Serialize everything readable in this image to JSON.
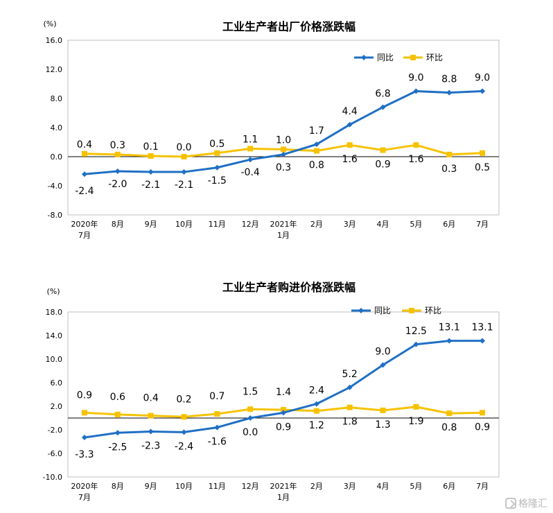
{
  "chart_data": [
    {
      "type": "line",
      "title": "工业生产者出厂价格涨跌幅",
      "ylabel": "(%)",
      "ylim": [
        -8.0,
        16.0
      ],
      "yticks": [
        "16.0",
        "12.0",
        "8.0",
        "4.0",
        "0.0",
        "-4.0",
        "-8.0"
      ],
      "categories": [
        [
          "2020年",
          "7月"
        ],
        [
          "8月"
        ],
        [
          "9月"
        ],
        [
          "10月"
        ],
        [
          "11月"
        ],
        [
          "12月"
        ],
        [
          "2021年",
          "1月"
        ],
        [
          "2月"
        ],
        [
          "3月"
        ],
        [
          "4月"
        ],
        [
          "5月"
        ],
        [
          "6月"
        ],
        [
          "7月"
        ]
      ],
      "legend_position": "top-right",
      "series": [
        {
          "name": "同比",
          "color": "#1f6fc5",
          "marker": "diamond",
          "values": [
            -2.4,
            -2.0,
            -2.1,
            -2.1,
            -1.5,
            -0.4,
            0.3,
            1.7,
            4.4,
            6.8,
            9.0,
            8.8,
            9.0
          ],
          "labels": [
            "-2.4",
            "-2.0",
            "-2.1",
            "-2.1",
            "-1.5",
            "-0.4",
            "0.3",
            "1.7",
            "4.4",
            "6.8",
            "9.0",
            "8.8",
            "9.0"
          ]
        },
        {
          "name": "环比",
          "color": "#f6c200",
          "marker": "square",
          "values": [
            0.4,
            0.3,
            0.1,
            0.0,
            0.5,
            1.1,
            1.0,
            0.8,
            1.6,
            0.9,
            1.6,
            0.3,
            0.5
          ],
          "labels": [
            "0.4",
            "0.3",
            "0.1",
            "0.0",
            "0.5",
            "1.1",
            "1.0",
            "0.8",
            "1.6",
            "0.9",
            "1.6",
            "0.3",
            "0.5"
          ]
        }
      ]
    },
    {
      "type": "line",
      "title": "工业生产者购进价格涨跌幅",
      "ylabel": "(%)",
      "ylim": [
        -10.0,
        18.0
      ],
      "yticks": [
        "18.0",
        "14.0",
        "10.0",
        "6.0",
        "2.0",
        "-2.0",
        "-6.0",
        "-10.0"
      ],
      "categories": [
        [
          "2020年",
          "7月"
        ],
        [
          "8月"
        ],
        [
          "9月"
        ],
        [
          "10月"
        ],
        [
          "11月"
        ],
        [
          "12月"
        ],
        [
          "2021年",
          "1月"
        ],
        [
          "2月"
        ],
        [
          "3月"
        ],
        [
          "4月"
        ],
        [
          "5月"
        ],
        [
          "6月"
        ],
        [
          "7月"
        ]
      ],
      "legend_position": "top-right",
      "series": [
        {
          "name": "同比",
          "color": "#1f6fc5",
          "marker": "diamond",
          "values": [
            -3.3,
            -2.5,
            -2.3,
            -2.4,
            -1.6,
            0.0,
            0.9,
            2.4,
            5.2,
            9.0,
            12.5,
            13.1,
            13.1
          ],
          "labels": [
            "-3.3",
            "-2.5",
            "-2.3",
            "-2.4",
            "-1.6",
            "0.0",
            "0.9",
            "2.4",
            "5.2",
            "9.0",
            "12.5",
            "13.1",
            "13.1"
          ]
        },
        {
          "name": "环比",
          "color": "#f6c200",
          "marker": "square",
          "values": [
            0.9,
            0.6,
            0.4,
            0.2,
            0.7,
            1.5,
            1.4,
            1.2,
            1.8,
            1.3,
            1.9,
            0.8,
            0.9
          ],
          "labels": [
            "0.9",
            "0.6",
            "0.4",
            "0.2",
            "0.7",
            "1.5",
            "1.4",
            "1.2",
            "1.8",
            "1.3",
            "1.9",
            "0.8",
            "0.9"
          ]
        }
      ]
    }
  ],
  "watermark": {
    "text": "格隆汇",
    "icon": "gelonghui-logo-icon"
  }
}
